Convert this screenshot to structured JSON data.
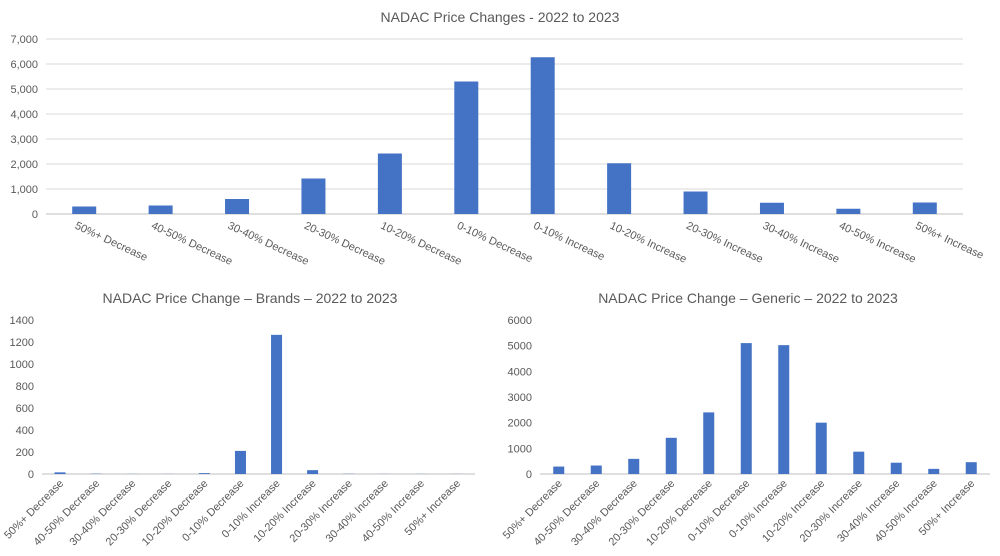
{
  "chart_data": [
    {
      "type": "bar",
      "title": "NADAC Price Changes - 2022 to 2023",
      "categories": [
        "50%+ Decrease",
        "40-50% Decrease",
        "30-40% Decrease",
        "20-30% Decrease",
        "10-20% Decrease",
        "0-10% Decrease",
        "0-10% Increase",
        "10-20% Increase",
        "20-30% Increase",
        "30-40% Increase",
        "40-50% Increase",
        "50%+ Increase"
      ],
      "values": [
        300,
        340,
        600,
        1420,
        2420,
        5300,
        6270,
        2030,
        900,
        450,
        210,
        460
      ],
      "ylim": [
        0,
        7000
      ],
      "yticks": [
        "0",
        "1,000",
        "2,000",
        "3,000",
        "4,000",
        "5,000",
        "6,000",
        "7,000"
      ],
      "grid": true,
      "color": "#4472C4"
    },
    {
      "type": "bar",
      "title": "NADAC Price Change – Brands – 2022 to 2023",
      "categories": [
        "50%+ Decrease",
        "40-50% Decrease",
        "30-40% Decrease",
        "20-30% Decrease",
        "10-20% Decrease",
        "0-10% Decrease",
        "0-10% Increase",
        "10-20% Increase",
        "20-30% Increase",
        "30-40% Increase",
        "40-50% Increase",
        "50%+ Increase"
      ],
      "values": [
        15,
        3,
        1,
        1,
        8,
        210,
        1265,
        35,
        2,
        1,
        1,
        1
      ],
      "ylim": [
        0,
        1400
      ],
      "yticks": [
        "0",
        "200",
        "400",
        "600",
        "800",
        "1000",
        "1200",
        "1400"
      ],
      "grid": false,
      "color": "#4472C4"
    },
    {
      "type": "bar",
      "title": "NADAC Price Change – Generic – 2022 to 2023",
      "categories": [
        "50%+ Decrease",
        "40-50% Decrease",
        "30-40% Decrease",
        "20-30% Decrease",
        "10-20% Decrease",
        "0-10% Decrease",
        "0-10% Increase",
        "10-20% Increase",
        "20-30% Increase",
        "30-40% Increase",
        "40-50% Increase",
        "50%+ Increase"
      ],
      "values": [
        290,
        330,
        590,
        1410,
        2400,
        5100,
        5020,
        2000,
        870,
        440,
        200,
        460
      ],
      "ylim": [
        0,
        6000
      ],
      "yticks": [
        "0",
        "1000",
        "2000",
        "3000",
        "4000",
        "5000",
        "6000"
      ],
      "grid": false,
      "color": "#4472C4"
    }
  ]
}
